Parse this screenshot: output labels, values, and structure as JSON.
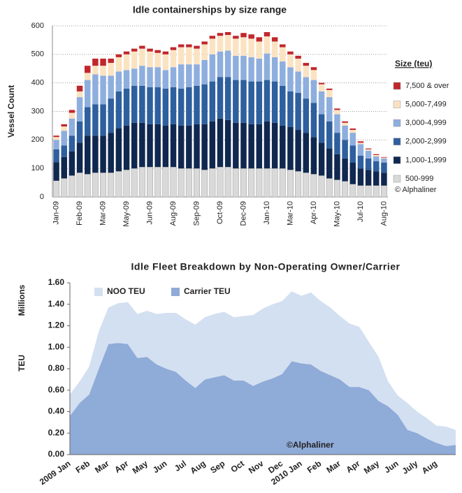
{
  "chart_data": [
    {
      "type": "bar",
      "stacked": true,
      "title": "Idle containerships by size range",
      "y_label": "Vessel Count",
      "legend_title": "Size (teu)",
      "annotation": "© Alphaliner",
      "grid": true,
      "categories": [
        "Jan-09",
        null,
        null,
        "Feb-09",
        null,
        null,
        "Mar-09",
        null,
        null,
        "May-09",
        null,
        null,
        "Jun-09",
        null,
        null,
        "Aug-09",
        null,
        null,
        "Sep-09",
        null,
        null,
        "Oct-09",
        null,
        null,
        "Dec-09",
        null,
        null,
        "Jan-10",
        null,
        null,
        "Mar-10",
        null,
        null,
        "Apr-10",
        null,
        null,
        "May-10",
        null,
        null,
        "Jul-10",
        null,
        null,
        "Aug-10"
      ],
      "ylim": [
        0,
        600
      ],
      "yticks": [
        0,
        100,
        200,
        300,
        400,
        500,
        600
      ],
      "series": [
        {
          "name": "500-999",
          "color": "#d9d9d9",
          "values": [
            57,
            65,
            75,
            85,
            80,
            85,
            85,
            85,
            90,
            95,
            100,
            105,
            105,
            105,
            105,
            105,
            100,
            100,
            100,
            95,
            100,
            105,
            105,
            100,
            100,
            100,
            100,
            100,
            100,
            100,
            95,
            90,
            85,
            80,
            75,
            65,
            60,
            55,
            45,
            40,
            40,
            40,
            40
          ]
        },
        {
          "name": "1,000-1,999",
          "color": "#10284f",
          "values": [
            65,
            75,
            85,
            105,
            135,
            130,
            130,
            140,
            150,
            155,
            160,
            155,
            150,
            150,
            145,
            150,
            150,
            150,
            155,
            160,
            165,
            170,
            165,
            160,
            160,
            155,
            155,
            165,
            160,
            150,
            150,
            145,
            140,
            130,
            115,
            105,
            90,
            80,
            75,
            60,
            55,
            50,
            45
          ]
        },
        {
          "name": "2,000-2,999",
          "color": "#2e5f9e",
          "values": [
            45,
            40,
            55,
            75,
            100,
            110,
            110,
            120,
            130,
            130,
            130,
            130,
            130,
            130,
            130,
            130,
            130,
            135,
            135,
            140,
            140,
            145,
            150,
            150,
            150,
            150,
            150,
            145,
            145,
            140,
            125,
            130,
            120,
            120,
            100,
            95,
            75,
            65,
            60,
            45,
            40,
            35,
            35
          ]
        },
        {
          "name": "3,000-4,999",
          "color": "#8eaede",
          "values": [
            33,
            52,
            60,
            85,
            95,
            105,
            100,
            80,
            70,
            65,
            60,
            70,
            70,
            70,
            65,
            70,
            85,
            80,
            75,
            85,
            95,
            90,
            93,
            85,
            85,
            85,
            80,
            93,
            85,
            85,
            85,
            75,
            75,
            80,
            80,
            85,
            65,
            50,
            45,
            40,
            27,
            17,
            15
          ]
        },
        {
          "name": "5,000-7,499",
          "color": "#fbe3c2",
          "values": [
            10,
            15,
            20,
            20,
            25,
            30,
            35,
            45,
            50,
            55,
            60,
            60,
            55,
            50,
            55,
            60,
            60,
            60,
            55,
            55,
            55,
            55,
            55,
            60,
            65,
            65,
            60,
            60,
            55,
            50,
            45,
            45,
            40,
            35,
            25,
            25,
            15,
            10,
            10,
            5,
            5,
            5,
            3
          ]
        },
        {
          "name": "7,500 & over",
          "color": "#c0272d",
          "values": [
            5,
            8,
            10,
            20,
            25,
            25,
            25,
            15,
            10,
            10,
            10,
            10,
            10,
            10,
            10,
            10,
            10,
            10,
            10,
            10,
            10,
            10,
            10,
            10,
            15,
            15,
            15,
            15,
            15,
            10,
            10,
            10,
            10,
            10,
            5,
            5,
            5,
            5,
            5,
            5,
            3,
            3,
            2
          ]
        }
      ]
    },
    {
      "type": "area",
      "stacked": true,
      "title": "Idle Fleet Breakdown by Non-Operating Owner/Carrier",
      "y_label": "TEU",
      "y_unit": "Millions",
      "annotation": "©Alphaliner",
      "categories": [
        "2009 Jan",
        null,
        "Feb",
        null,
        "Mar",
        null,
        "Apr",
        null,
        "May",
        null,
        "Jun",
        null,
        "Jul",
        null,
        "Aug",
        null,
        "Sep",
        null,
        "Oct",
        null,
        "Nov",
        null,
        "Dec",
        null,
        "2010 Jan",
        null,
        "Feb",
        null,
        "Mar",
        null,
        "Apr",
        null,
        "May",
        null,
        "Jun",
        null,
        "July",
        null,
        "Aug",
        null,
        null
      ],
      "ylim": [
        0,
        1.6
      ],
      "yticks": [
        {
          "value": 0,
          "label": "0.00"
        },
        {
          "value": 0.2,
          "label": "0.20"
        },
        {
          "value": 0.4,
          "label": "0.40"
        },
        {
          "value": 0.6,
          "label": "0.60"
        },
        {
          "value": 0.8,
          "label": "0.80"
        },
        {
          "value": 1.0,
          "label": "1.00"
        },
        {
          "value": 1.2,
          "label": "1.20"
        },
        {
          "value": 1.4,
          "label": "1.40"
        },
        {
          "value": 1.6,
          "label": "1.60"
        }
      ],
      "series": [
        {
          "name": "NOO TEU",
          "color": "#d3e0f1",
          "values": [
            0.2,
            0.2,
            0.26,
            0.35,
            0.34,
            0.37,
            0.39,
            0.41,
            0.43,
            0.47,
            0.52,
            0.55,
            0.57,
            0.59,
            0.58,
            0.59,
            0.59,
            0.59,
            0.6,
            0.66,
            0.68,
            0.69,
            0.68,
            0.65,
            0.63,
            0.67,
            0.65,
            0.63,
            0.59,
            0.59,
            0.56,
            0.45,
            0.41,
            0.23,
            0.18,
            0.25,
            0.2,
            0.19,
            0.16,
            0.18,
            0.14
          ]
        },
        {
          "name": "Carrier TEU",
          "color": "#8fabd8",
          "values": [
            0.36,
            0.48,
            0.56,
            0.8,
            1.03,
            1.04,
            1.03,
            0.9,
            0.91,
            0.84,
            0.8,
            0.77,
            0.69,
            0.62,
            0.7,
            0.72,
            0.74,
            0.69,
            0.69,
            0.64,
            0.68,
            0.71,
            0.75,
            0.87,
            0.85,
            0.84,
            0.78,
            0.74,
            0.7,
            0.63,
            0.63,
            0.6,
            0.5,
            0.45,
            0.37,
            0.23,
            0.2,
            0.15,
            0.11,
            0.08,
            0.09
          ]
        }
      ]
    }
  ]
}
